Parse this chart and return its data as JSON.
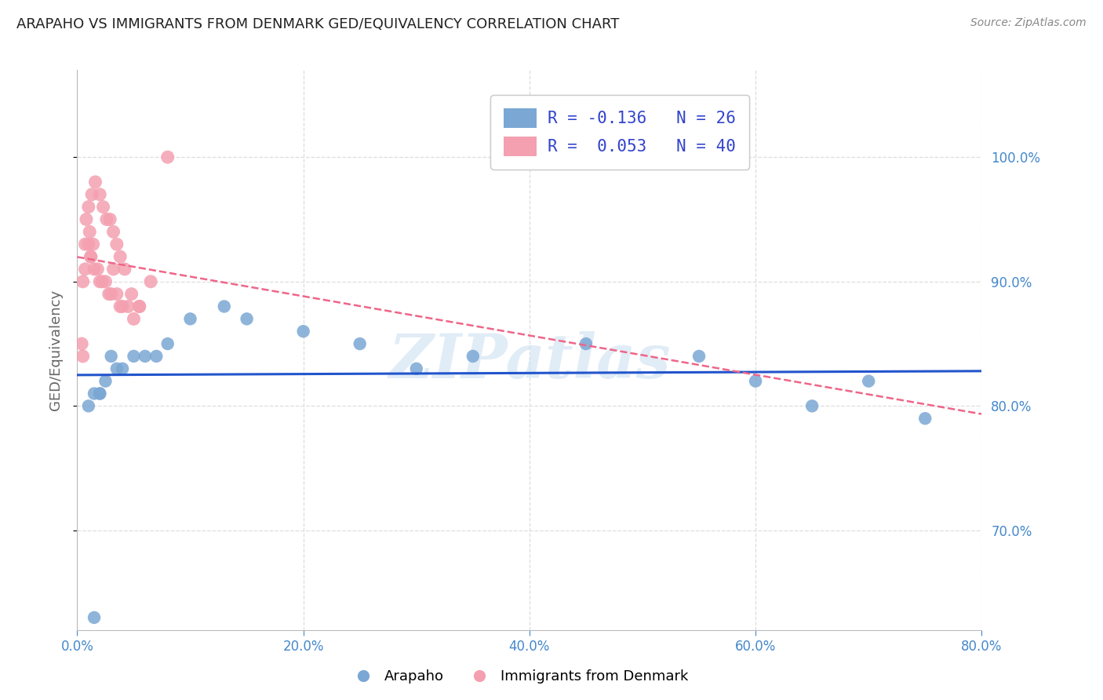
{
  "title": "ARAPAHO VS IMMIGRANTS FROM DENMARK GED/EQUIVALENCY CORRELATION CHART",
  "source": "Source: ZipAtlas.com",
  "ylabel": "GED/Equivalency",
  "xlim": [
    0,
    80
  ],
  "ylim": [
    62,
    107
  ],
  "xlabel_vals": [
    0,
    20,
    40,
    60,
    80
  ],
  "ylabel_vals": [
    70,
    80,
    90,
    100
  ],
  "legend_r1": "R = -0.136",
  "legend_n1": "N = 26",
  "legend_r2": "R =  0.053",
  "legend_n2": "N = 40",
  "arapaho_x": [
    1.0,
    1.5,
    2.0,
    2.5,
    3.0,
    3.5,
    4.0,
    5.0,
    6.0,
    7.0,
    8.0,
    10.0,
    13.0,
    15.0,
    20.0,
    25.0,
    30.0,
    35.0,
    45.0,
    55.0,
    60.0,
    65.0,
    70.0,
    75.0,
    1.5,
    2.0
  ],
  "arapaho_y": [
    80,
    81,
    81,
    82,
    84,
    83,
    83,
    84,
    84,
    84,
    85,
    87,
    88,
    87,
    86,
    85,
    83,
    84,
    85,
    84,
    82,
    80,
    82,
    79,
    63,
    81
  ],
  "denmark_x": [
    0.5,
    0.7,
    1.0,
    1.2,
    1.5,
    1.8,
    2.0,
    2.2,
    2.5,
    2.8,
    3.0,
    3.2,
    3.5,
    3.8,
    4.0,
    4.5,
    5.0,
    5.5,
    1.0,
    1.3,
    1.6,
    2.0,
    2.3,
    2.6,
    2.9,
    3.2,
    3.5,
    3.8,
    4.2,
    4.8,
    5.5,
    6.5,
    8.0,
    0.8,
    1.1,
    1.4,
    0.5,
    0.7,
    1.2,
    0.4
  ],
  "denmark_y": [
    90,
    91,
    93,
    92,
    91,
    91,
    90,
    90,
    90,
    89,
    89,
    91,
    89,
    88,
    88,
    88,
    87,
    88,
    96,
    97,
    98,
    97,
    96,
    95,
    95,
    94,
    93,
    92,
    91,
    89,
    88,
    90,
    100,
    95,
    94,
    93,
    84,
    93,
    92,
    85
  ],
  "arapaho_color": "#7BA7D4",
  "denmark_color": "#F4A0B0",
  "arapaho_line_color": "#2255CC",
  "denmark_line_color": "#EE6688",
  "axis_label_color": "#4488CC",
  "grid_color": "#dddddd",
  "title_color": "#222222",
  "source_color": "#888888",
  "watermark_color": "#c8ddf0",
  "background_color": "#ffffff",
  "legend_text_color": "#3344cc"
}
